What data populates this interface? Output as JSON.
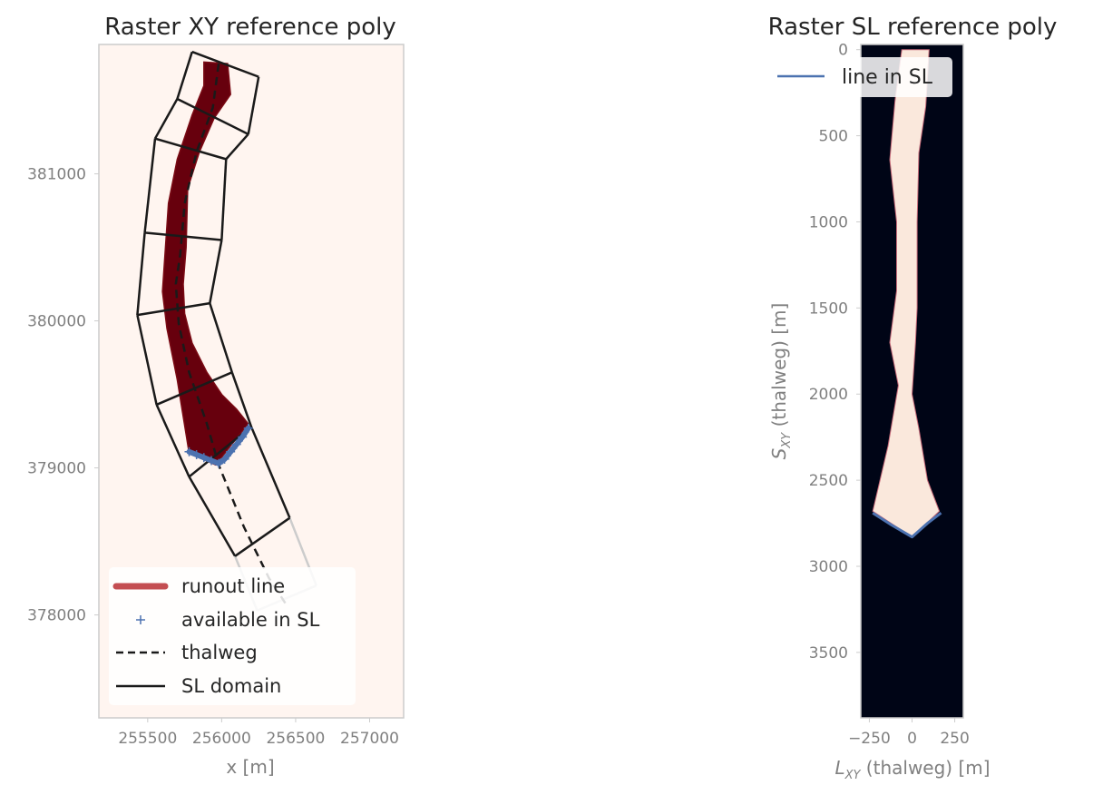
{
  "chart_data": [
    {
      "type": "raster-map",
      "title": "Raster XY reference poly",
      "xlabel": "x [m]",
      "ylabel": "",
      "xlim": [
        255170,
        257230
      ],
      "ylim": [
        377300,
        381880
      ],
      "xticks": [
        255500,
        256000,
        256500,
        257000
      ],
      "xtick_labels": [
        "255500",
        "256000",
        "256500",
        "257000"
      ],
      "yticks": [
        378000,
        379000,
        380000,
        381000
      ],
      "ytick_labels": [
        "378000",
        "379000",
        "380000",
        "381000"
      ],
      "grid": false,
      "legend": {
        "placement": "lower-left",
        "entries": [
          {
            "label": "runout line",
            "style": "thick-line",
            "color": "#c44e52"
          },
          {
            "label": "available in SL",
            "style": "plus-marker",
            "color": "#4c72b0"
          },
          {
            "label": "thalweg",
            "style": "dashed",
            "color": "#1a1a1a"
          },
          {
            "label": "SL domain",
            "style": "solid",
            "color": "#1a1a1a"
          }
        ]
      },
      "background_color": "#fff5f0",
      "runout_area_color": "#67000d",
      "runout_area_polygon": [
        [
          255880,
          381760
        ],
        [
          256040,
          381750
        ],
        [
          256060,
          381540
        ],
        [
          255950,
          381380
        ],
        [
          255850,
          381150
        ],
        [
          255770,
          380900
        ],
        [
          255760,
          380500
        ],
        [
          255740,
          380250
        ],
        [
          255750,
          380050
        ],
        [
          255800,
          379850
        ],
        [
          255900,
          379650
        ],
        [
          256000,
          379500
        ],
        [
          256100,
          379400
        ],
        [
          256180,
          379300
        ],
        [
          256060,
          379150
        ],
        [
          255960,
          379020
        ],
        [
          255780,
          379100
        ],
        [
          255700,
          379600
        ],
        [
          255630,
          379950
        ],
        [
          255600,
          380200
        ],
        [
          255620,
          380500
        ],
        [
          255640,
          380800
        ],
        [
          255700,
          381100
        ],
        [
          255800,
          381400
        ],
        [
          255880,
          381600
        ]
      ],
      "available_in_sl_points": [
        [
          255780,
          379110
        ],
        [
          255830,
          379090
        ],
        [
          255880,
          379070
        ],
        [
          255930,
          379050
        ],
        [
          255980,
          379030
        ],
        [
          256020,
          379060
        ],
        [
          256060,
          379110
        ],
        [
          256100,
          379160
        ],
        [
          256140,
          379210
        ],
        [
          256180,
          379270
        ]
      ],
      "thalweg": [
        [
          255980,
          381750
        ],
        [
          255940,
          381450
        ],
        [
          255830,
          381150
        ],
        [
          255750,
          380800
        ],
        [
          255720,
          380450
        ],
        [
          255690,
          380250
        ],
        [
          255710,
          379980
        ],
        [
          255780,
          379650
        ],
        [
          255900,
          379300
        ],
        [
          255980,
          379020
        ],
        [
          256150,
          378600
        ],
        [
          256320,
          378250
        ],
        [
          256430,
          378080
        ]
      ],
      "sl_domain": {
        "left": [
          [
            255800,
            381830
          ],
          [
            255700,
            381510
          ],
          [
            255550,
            381240
          ],
          [
            255480,
            380600
          ],
          [
            255430,
            380040
          ],
          [
            255560,
            379430
          ],
          [
            255780,
            378940
          ],
          [
            256090,
            378400
          ],
          [
            256240,
            378030
          ]
        ],
        "right": [
          [
            256250,
            381660
          ],
          [
            256180,
            381270
          ],
          [
            256030,
            381100
          ],
          [
            256000,
            380550
          ],
          [
            255920,
            380120
          ],
          [
            256070,
            379650
          ],
          [
            256200,
            379280
          ],
          [
            256460,
            378660
          ],
          [
            256640,
            378200
          ]
        ],
        "faded_from_index": 7
      }
    },
    {
      "type": "raster-map",
      "title": "Raster SL reference poly",
      "xlabel": "L_XY (thalweg) [m]",
      "xlabel_main": "L",
      "xlabel_sub": "XY",
      "xlabel_rest": " (thalweg) [m]",
      "ylabel": "S_XY (thalweg) [m]",
      "ylabel_main": "S",
      "ylabel_sub": "XY",
      "ylabel_rest": " (thalweg) [m]",
      "xlim": [
        -300,
        300
      ],
      "ylim": [
        3880,
        -30
      ],
      "y_axis_inverted": true,
      "xticks": [
        -250,
        0,
        250
      ],
      "xtick_labels": [
        "−250",
        "0",
        "250"
      ],
      "yticks": [
        0,
        500,
        1000,
        1500,
        2000,
        2500,
        3000,
        3500
      ],
      "ytick_labels": [
        "0",
        "500",
        "1000",
        "1500",
        "2000",
        "2500",
        "3000",
        "3500"
      ],
      "grid": false,
      "legend": {
        "placement": "upper-right",
        "entries": [
          {
            "label": "line in SL",
            "style": "solid",
            "color": "#4c72b0"
          }
        ]
      },
      "background_color": "#000516",
      "runout_area_color": "#fae8dc",
      "runout_area_polygon": [
        [
          -60,
          0
        ],
        [
          100,
          0
        ],
        [
          80,
          330
        ],
        [
          40,
          600
        ],
        [
          30,
          1000
        ],
        [
          30,
          1500
        ],
        [
          20,
          1700
        ],
        [
          0,
          2000
        ],
        [
          40,
          2200
        ],
        [
          90,
          2500
        ],
        [
          160,
          2680
        ],
        [
          0,
          2830
        ],
        [
          -230,
          2680
        ],
        [
          -140,
          2300
        ],
        [
          -80,
          1950
        ],
        [
          -130,
          1700
        ],
        [
          -90,
          1400
        ],
        [
          -90,
          1000
        ],
        [
          -130,
          640
        ],
        [
          -100,
          300
        ]
      ],
      "line_in_sl": [
        [
          -230,
          2690
        ],
        [
          -120,
          2760
        ],
        [
          0,
          2830
        ],
        [
          90,
          2750
        ],
        [
          170,
          2690
        ]
      ]
    }
  ]
}
